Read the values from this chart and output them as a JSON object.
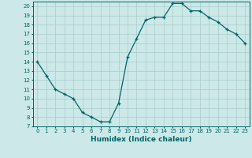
{
  "x": [
    0,
    1,
    2,
    3,
    4,
    5,
    6,
    7,
    8,
    9,
    10,
    11,
    12,
    13,
    14,
    15,
    16,
    17,
    18,
    19,
    20,
    21,
    22,
    23
  ],
  "y": [
    14.0,
    12.5,
    11.0,
    10.5,
    10.0,
    8.5,
    8.0,
    7.5,
    7.5,
    9.5,
    14.5,
    16.5,
    18.5,
    18.8,
    18.8,
    20.3,
    20.3,
    19.5,
    19.5,
    18.8,
    18.3,
    17.5,
    17.0,
    16.0
  ],
  "xlabel": "Humidex (Indice chaleur)",
  "ylim": [
    7,
    20.5
  ],
  "xlim": [
    -0.5,
    23.5
  ],
  "yticks": [
    7,
    8,
    9,
    10,
    11,
    12,
    13,
    14,
    15,
    16,
    17,
    18,
    19,
    20
  ],
  "xticks": [
    0,
    1,
    2,
    3,
    4,
    5,
    6,
    7,
    8,
    9,
    10,
    11,
    12,
    13,
    14,
    15,
    16,
    17,
    18,
    19,
    20,
    21,
    22,
    23
  ],
  "line_color": "#006666",
  "marker_color": "#006666",
  "bg_color": "#cce8e8",
  "grid_color": "#aacccc",
  "tick_label_color": "#006666",
  "axis_label_color": "#006666",
  "tick_fontsize": 5.0,
  "label_fontsize": 6.5
}
